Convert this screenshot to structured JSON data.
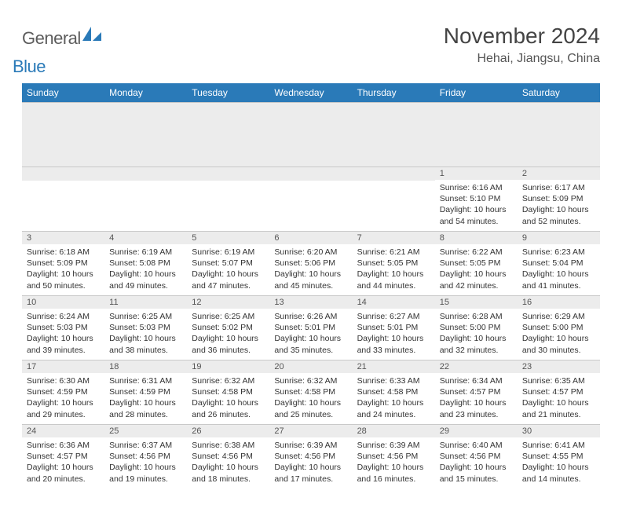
{
  "branding": {
    "logo_general": "General",
    "logo_blue": "Blue",
    "logo_color_gray": "#5c5c5c",
    "logo_color_blue": "#2a7ab8"
  },
  "header": {
    "month_title": "November 2024",
    "location": "Hehai, Jiangsu, China"
  },
  "theme": {
    "header_bg": "#2a7ab8",
    "header_text": "#ffffff",
    "daynum_bg": "#ececec",
    "border_color": "#c9c9c9",
    "body_text": "#333333",
    "title_text": "#444444"
  },
  "weekdays": [
    "Sunday",
    "Monday",
    "Tuesday",
    "Wednesday",
    "Thursday",
    "Friday",
    "Saturday"
  ],
  "weeks": [
    [
      {
        "day": "",
        "sunrise": "",
        "sunset": "",
        "daylight": ""
      },
      {
        "day": "",
        "sunrise": "",
        "sunset": "",
        "daylight": ""
      },
      {
        "day": "",
        "sunrise": "",
        "sunset": "",
        "daylight": ""
      },
      {
        "day": "",
        "sunrise": "",
        "sunset": "",
        "daylight": ""
      },
      {
        "day": "",
        "sunrise": "",
        "sunset": "",
        "daylight": ""
      },
      {
        "day": "1",
        "sunrise": "Sunrise: 6:16 AM",
        "sunset": "Sunset: 5:10 PM",
        "daylight": "Daylight: 10 hours and 54 minutes."
      },
      {
        "day": "2",
        "sunrise": "Sunrise: 6:17 AM",
        "sunset": "Sunset: 5:09 PM",
        "daylight": "Daylight: 10 hours and 52 minutes."
      }
    ],
    [
      {
        "day": "3",
        "sunrise": "Sunrise: 6:18 AM",
        "sunset": "Sunset: 5:09 PM",
        "daylight": "Daylight: 10 hours and 50 minutes."
      },
      {
        "day": "4",
        "sunrise": "Sunrise: 6:19 AM",
        "sunset": "Sunset: 5:08 PM",
        "daylight": "Daylight: 10 hours and 49 minutes."
      },
      {
        "day": "5",
        "sunrise": "Sunrise: 6:19 AM",
        "sunset": "Sunset: 5:07 PM",
        "daylight": "Daylight: 10 hours and 47 minutes."
      },
      {
        "day": "6",
        "sunrise": "Sunrise: 6:20 AM",
        "sunset": "Sunset: 5:06 PM",
        "daylight": "Daylight: 10 hours and 45 minutes."
      },
      {
        "day": "7",
        "sunrise": "Sunrise: 6:21 AM",
        "sunset": "Sunset: 5:05 PM",
        "daylight": "Daylight: 10 hours and 44 minutes."
      },
      {
        "day": "8",
        "sunrise": "Sunrise: 6:22 AM",
        "sunset": "Sunset: 5:05 PM",
        "daylight": "Daylight: 10 hours and 42 minutes."
      },
      {
        "day": "9",
        "sunrise": "Sunrise: 6:23 AM",
        "sunset": "Sunset: 5:04 PM",
        "daylight": "Daylight: 10 hours and 41 minutes."
      }
    ],
    [
      {
        "day": "10",
        "sunrise": "Sunrise: 6:24 AM",
        "sunset": "Sunset: 5:03 PM",
        "daylight": "Daylight: 10 hours and 39 minutes."
      },
      {
        "day": "11",
        "sunrise": "Sunrise: 6:25 AM",
        "sunset": "Sunset: 5:03 PM",
        "daylight": "Daylight: 10 hours and 38 minutes."
      },
      {
        "day": "12",
        "sunrise": "Sunrise: 6:25 AM",
        "sunset": "Sunset: 5:02 PM",
        "daylight": "Daylight: 10 hours and 36 minutes."
      },
      {
        "day": "13",
        "sunrise": "Sunrise: 6:26 AM",
        "sunset": "Sunset: 5:01 PM",
        "daylight": "Daylight: 10 hours and 35 minutes."
      },
      {
        "day": "14",
        "sunrise": "Sunrise: 6:27 AM",
        "sunset": "Sunset: 5:01 PM",
        "daylight": "Daylight: 10 hours and 33 minutes."
      },
      {
        "day": "15",
        "sunrise": "Sunrise: 6:28 AM",
        "sunset": "Sunset: 5:00 PM",
        "daylight": "Daylight: 10 hours and 32 minutes."
      },
      {
        "day": "16",
        "sunrise": "Sunrise: 6:29 AM",
        "sunset": "Sunset: 5:00 PM",
        "daylight": "Daylight: 10 hours and 30 minutes."
      }
    ],
    [
      {
        "day": "17",
        "sunrise": "Sunrise: 6:30 AM",
        "sunset": "Sunset: 4:59 PM",
        "daylight": "Daylight: 10 hours and 29 minutes."
      },
      {
        "day": "18",
        "sunrise": "Sunrise: 6:31 AM",
        "sunset": "Sunset: 4:59 PM",
        "daylight": "Daylight: 10 hours and 28 minutes."
      },
      {
        "day": "19",
        "sunrise": "Sunrise: 6:32 AM",
        "sunset": "Sunset: 4:58 PM",
        "daylight": "Daylight: 10 hours and 26 minutes."
      },
      {
        "day": "20",
        "sunrise": "Sunrise: 6:32 AM",
        "sunset": "Sunset: 4:58 PM",
        "daylight": "Daylight: 10 hours and 25 minutes."
      },
      {
        "day": "21",
        "sunrise": "Sunrise: 6:33 AM",
        "sunset": "Sunset: 4:58 PM",
        "daylight": "Daylight: 10 hours and 24 minutes."
      },
      {
        "day": "22",
        "sunrise": "Sunrise: 6:34 AM",
        "sunset": "Sunset: 4:57 PM",
        "daylight": "Daylight: 10 hours and 23 minutes."
      },
      {
        "day": "23",
        "sunrise": "Sunrise: 6:35 AM",
        "sunset": "Sunset: 4:57 PM",
        "daylight": "Daylight: 10 hours and 21 minutes."
      }
    ],
    [
      {
        "day": "24",
        "sunrise": "Sunrise: 6:36 AM",
        "sunset": "Sunset: 4:57 PM",
        "daylight": "Daylight: 10 hours and 20 minutes."
      },
      {
        "day": "25",
        "sunrise": "Sunrise: 6:37 AM",
        "sunset": "Sunset: 4:56 PM",
        "daylight": "Daylight: 10 hours and 19 minutes."
      },
      {
        "day": "26",
        "sunrise": "Sunrise: 6:38 AM",
        "sunset": "Sunset: 4:56 PM",
        "daylight": "Daylight: 10 hours and 18 minutes."
      },
      {
        "day": "27",
        "sunrise": "Sunrise: 6:39 AM",
        "sunset": "Sunset: 4:56 PM",
        "daylight": "Daylight: 10 hours and 17 minutes."
      },
      {
        "day": "28",
        "sunrise": "Sunrise: 6:39 AM",
        "sunset": "Sunset: 4:56 PM",
        "daylight": "Daylight: 10 hours and 16 minutes."
      },
      {
        "day": "29",
        "sunrise": "Sunrise: 6:40 AM",
        "sunset": "Sunset: 4:56 PM",
        "daylight": "Daylight: 10 hours and 15 minutes."
      },
      {
        "day": "30",
        "sunrise": "Sunrise: 6:41 AM",
        "sunset": "Sunset: 4:55 PM",
        "daylight": "Daylight: 10 hours and 14 minutes."
      }
    ]
  ]
}
